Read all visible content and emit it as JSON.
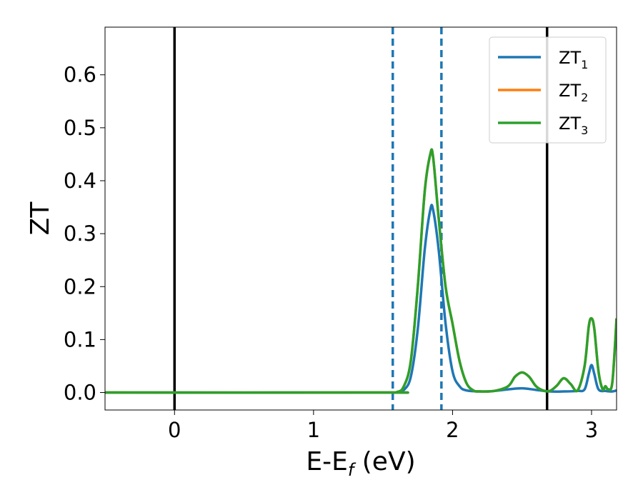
{
  "chart_data": {
    "type": "line",
    "title": "",
    "xlabel_main": "E-E",
    "xlabel_sub": "f",
    "xlabel_unit": " (eV)",
    "ylabel": "ZT",
    "xlim": [
      -0.5,
      3.18
    ],
    "ylim": [
      -0.033,
      0.69
    ],
    "x_ticks": [
      0,
      1,
      2,
      3
    ],
    "x_tick_labels": [
      "0",
      "1",
      "2",
      "3"
    ],
    "y_ticks": [
      0.0,
      0.1,
      0.2,
      0.3,
      0.4,
      0.5,
      0.6
    ],
    "y_tick_labels": [
      "0.0",
      "0.1",
      "0.2",
      "0.3",
      "0.4",
      "0.5",
      "0.6"
    ],
    "grid": false,
    "legend_position": "top-right",
    "vlines_solid": [
      0.0,
      2.68
    ],
    "vlines_dashed": [
      1.57,
      1.92
    ],
    "series": [
      {
        "name": "ZT",
        "sub": "1",
        "color": "#1f77b4",
        "points": [
          [
            -0.5,
            0
          ],
          [
            1.5,
            0
          ],
          [
            1.6,
            0.0005
          ],
          [
            1.65,
            0.005
          ],
          [
            1.7,
            0.03
          ],
          [
            1.75,
            0.12
          ],
          [
            1.8,
            0.27
          ],
          [
            1.84,
            0.345
          ],
          [
            1.86,
            0.345
          ],
          [
            1.9,
            0.27
          ],
          [
            1.95,
            0.13
          ],
          [
            2.0,
            0.04
          ],
          [
            2.05,
            0.012
          ],
          [
            2.1,
            0.004
          ],
          [
            2.2,
            0.002
          ],
          [
            2.3,
            0.003
          ],
          [
            2.4,
            0.006
          ],
          [
            2.5,
            0.008
          ],
          [
            2.6,
            0.005
          ],
          [
            2.7,
            0.002
          ],
          [
            2.8,
            0.002
          ],
          [
            2.9,
            0.003
          ],
          [
            2.95,
            0.006
          ],
          [
            2.98,
            0.035
          ],
          [
            3.0,
            0.052
          ],
          [
            3.02,
            0.035
          ],
          [
            3.05,
            0.006
          ],
          [
            3.1,
            0.003
          ],
          [
            3.15,
            0.002
          ],
          [
            3.18,
            0.004
          ]
        ]
      },
      {
        "name": "ZT",
        "sub": "2",
        "color": "#ff7f0e",
        "points": [
          [
            -0.5,
            0
          ],
          [
            1.5,
            0
          ],
          [
            1.6,
            0.001
          ],
          [
            1.65,
            0.012
          ],
          [
            1.7,
            0.06
          ],
          [
            1.75,
            0.2
          ],
          [
            1.8,
            0.38
          ],
          [
            1.84,
            0.45
          ],
          [
            1.86,
            0.445
          ],
          [
            1.9,
            0.33
          ],
          [
            1.95,
            0.2
          ],
          [
            2.0,
            0.13
          ],
          [
            2.05,
            0.06
          ],
          [
            2.1,
            0.018
          ],
          [
            2.15,
            0.004
          ],
          [
            2.2,
            0.002
          ],
          [
            2.3,
            0.003
          ],
          [
            2.4,
            0.012
          ],
          [
            2.45,
            0.03
          ],
          [
            2.5,
            0.038
          ],
          [
            2.55,
            0.03
          ],
          [
            2.6,
            0.012
          ],
          [
            2.65,
            0.004
          ],
          [
            2.7,
            0.003
          ],
          [
            2.75,
            0.013
          ],
          [
            2.8,
            0.027
          ],
          [
            2.85,
            0.016
          ],
          [
            2.9,
            0.004
          ],
          [
            2.95,
            0.05
          ],
          [
            2.98,
            0.125
          ],
          [
            3.0,
            0.14
          ],
          [
            3.02,
            0.12
          ],
          [
            3.05,
            0.04
          ],
          [
            3.08,
            0.006
          ],
          [
            3.1,
            0.012
          ],
          [
            3.12,
            0.006
          ],
          [
            3.15,
            0.02
          ],
          [
            3.18,
            0.14
          ]
        ]
      },
      {
        "name": "ZT",
        "sub": "3",
        "color": "#2ca02c",
        "points": [
          [
            -0.5,
            0
          ],
          [
            1.5,
            0
          ],
          [
            1.6,
            0.001
          ],
          [
            1.65,
            0.012
          ],
          [
            1.7,
            0.06
          ],
          [
            1.75,
            0.2
          ],
          [
            1.8,
            0.38
          ],
          [
            1.84,
            0.45
          ],
          [
            1.86,
            0.445
          ],
          [
            1.9,
            0.33
          ],
          [
            1.95,
            0.2
          ],
          [
            2.0,
            0.13
          ],
          [
            2.05,
            0.06
          ],
          [
            2.1,
            0.018
          ],
          [
            2.15,
            0.004
          ],
          [
            2.2,
            0.002
          ],
          [
            2.3,
            0.003
          ],
          [
            2.4,
            0.012
          ],
          [
            2.45,
            0.03
          ],
          [
            2.5,
            0.038
          ],
          [
            2.55,
            0.03
          ],
          [
            2.6,
            0.012
          ],
          [
            2.65,
            0.004
          ],
          [
            2.7,
            0.003
          ],
          [
            2.75,
            0.013
          ],
          [
            2.8,
            0.027
          ],
          [
            2.85,
            0.016
          ],
          [
            2.9,
            0.004
          ],
          [
            2.95,
            0.05
          ],
          [
            2.98,
            0.125
          ],
          [
            3.0,
            0.14
          ],
          [
            3.02,
            0.12
          ],
          [
            3.05,
            0.04
          ],
          [
            3.08,
            0.006
          ],
          [
            3.1,
            0.012
          ],
          [
            3.12,
            0.006
          ],
          [
            3.15,
            0.02
          ],
          [
            3.18,
            0.14
          ]
        ]
      }
    ]
  }
}
